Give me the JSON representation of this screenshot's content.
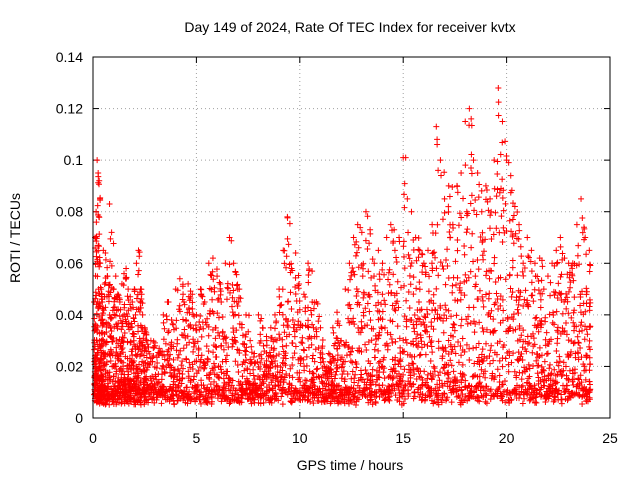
{
  "chart_data": {
    "type": "scatter",
    "title": "Day 149 of 2024, Rate Of TEC Index for receiver kvtx",
    "xlabel": "GPS time / hours",
    "ylabel": "ROTI / TECUs",
    "xlim": [
      0,
      25
    ],
    "ylim": [
      0,
      0.14
    ],
    "xticks": [
      0,
      5,
      10,
      15,
      20,
      25
    ],
    "yticks": [
      0,
      0.02,
      0.04,
      0.06,
      0.08,
      0.1,
      0.12,
      0.14
    ],
    "grid": true,
    "marker": "+",
    "color": "#ff0000",
    "series": [
      {
        "values_note_free": true,
        "x": [
          0.05,
          0.1,
          0.15,
          0.2,
          0.25,
          0.3,
          0.35,
          0.4,
          0.45,
          0.5,
          0.6,
          0.7,
          0.8,
          0.9,
          1.0,
          1.1,
          1.2,
          1.3,
          1.4,
          1.5,
          1.6,
          1.7,
          1.8,
          1.9,
          2.0,
          2.1,
          2.2,
          2.3,
          2.4,
          2.5,
          2.6,
          2.8,
          3.0,
          3.2,
          3.4,
          3.6,
          3.8,
          4.0,
          4.2,
          4.4,
          4.6,
          4.8,
          5.0,
          5.2,
          5.4,
          5.6,
          5.8,
          6.0,
          6.2,
          6.4,
          6.6,
          6.8,
          7.0,
          7.2,
          7.4,
          7.6,
          7.8,
          8.0,
          8.2,
          8.4,
          8.6,
          8.8,
          9.0,
          9.2,
          9.4,
          9.6,
          9.8,
          10.0,
          10.2,
          10.4,
          10.6,
          10.8,
          11.0,
          11.2,
          11.4,
          11.6,
          11.8,
          12.0,
          12.2,
          12.4,
          12.6,
          12.8,
          13.0,
          13.2,
          13.4,
          13.6,
          13.8,
          14.0,
          14.2,
          14.4,
          14.6,
          14.8,
          15.0,
          15.2,
          15.4,
          15.6,
          15.8,
          16.0,
          16.2,
          16.4,
          16.6,
          16.8,
          17.0,
          17.2,
          17.4,
          17.6,
          17.8,
          18.0,
          18.2,
          18.4,
          18.6,
          18.8,
          19.0,
          19.2,
          19.4,
          19.6,
          19.8,
          20.0,
          20.2,
          20.4,
          20.6,
          20.8,
          21.0,
          21.2,
          21.4,
          21.6,
          21.8,
          22.0,
          22.2,
          22.4,
          22.6,
          22.8,
          23.0,
          23.2,
          23.4,
          23.6,
          23.8,
          24.0
        ],
        "y": [
          0.045,
          0.07,
          0.08,
          0.1,
          0.095,
          0.092,
          0.06,
          0.05,
          0.045,
          0.065,
          0.064,
          0.055,
          0.083,
          0.072,
          0.05,
          0.055,
          0.048,
          0.045,
          0.052,
          0.056,
          0.058,
          0.05,
          0.047,
          0.045,
          0.05,
          0.06,
          0.065,
          0.05,
          0.04,
          0.035,
          0.03,
          0.03,
          0.028,
          0.027,
          0.04,
          0.045,
          0.038,
          0.05,
          0.054,
          0.045,
          0.052,
          0.048,
          0.04,
          0.05,
          0.045,
          0.06,
          0.062,
          0.055,
          0.045,
          0.06,
          0.07,
          0.06,
          0.05,
          0.035,
          0.04,
          0.03,
          0.025,
          0.04,
          0.035,
          0.03,
          0.035,
          0.04,
          0.05,
          0.065,
          0.078,
          0.058,
          0.064,
          0.042,
          0.048,
          0.06,
          0.045,
          0.045,
          0.035,
          0.02,
          0.025,
          0.035,
          0.041,
          0.03,
          0.05,
          0.06,
          0.07,
          0.075,
          0.072,
          0.08,
          0.073,
          0.06,
          0.065,
          0.06,
          0.07,
          0.075,
          0.065,
          0.07,
          0.101,
          0.085,
          0.08,
          0.07,
          0.065,
          0.06,
          0.065,
          0.075,
          0.113,
          0.1,
          0.085,
          0.09,
          0.075,
          0.09,
          0.095,
          0.115,
          0.12,
          0.1,
          0.095,
          0.08,
          0.09,
          0.085,
          0.1,
          0.128,
          0.115,
          0.1,
          0.094,
          0.082,
          0.075,
          0.06,
          0.07,
          0.065,
          0.055,
          0.062,
          0.05,
          0.055,
          0.06,
          0.065,
          0.07,
          0.062,
          0.06,
          0.06,
          0.075,
          0.085,
          0.07,
          0.065
        ]
      }
    ]
  }
}
